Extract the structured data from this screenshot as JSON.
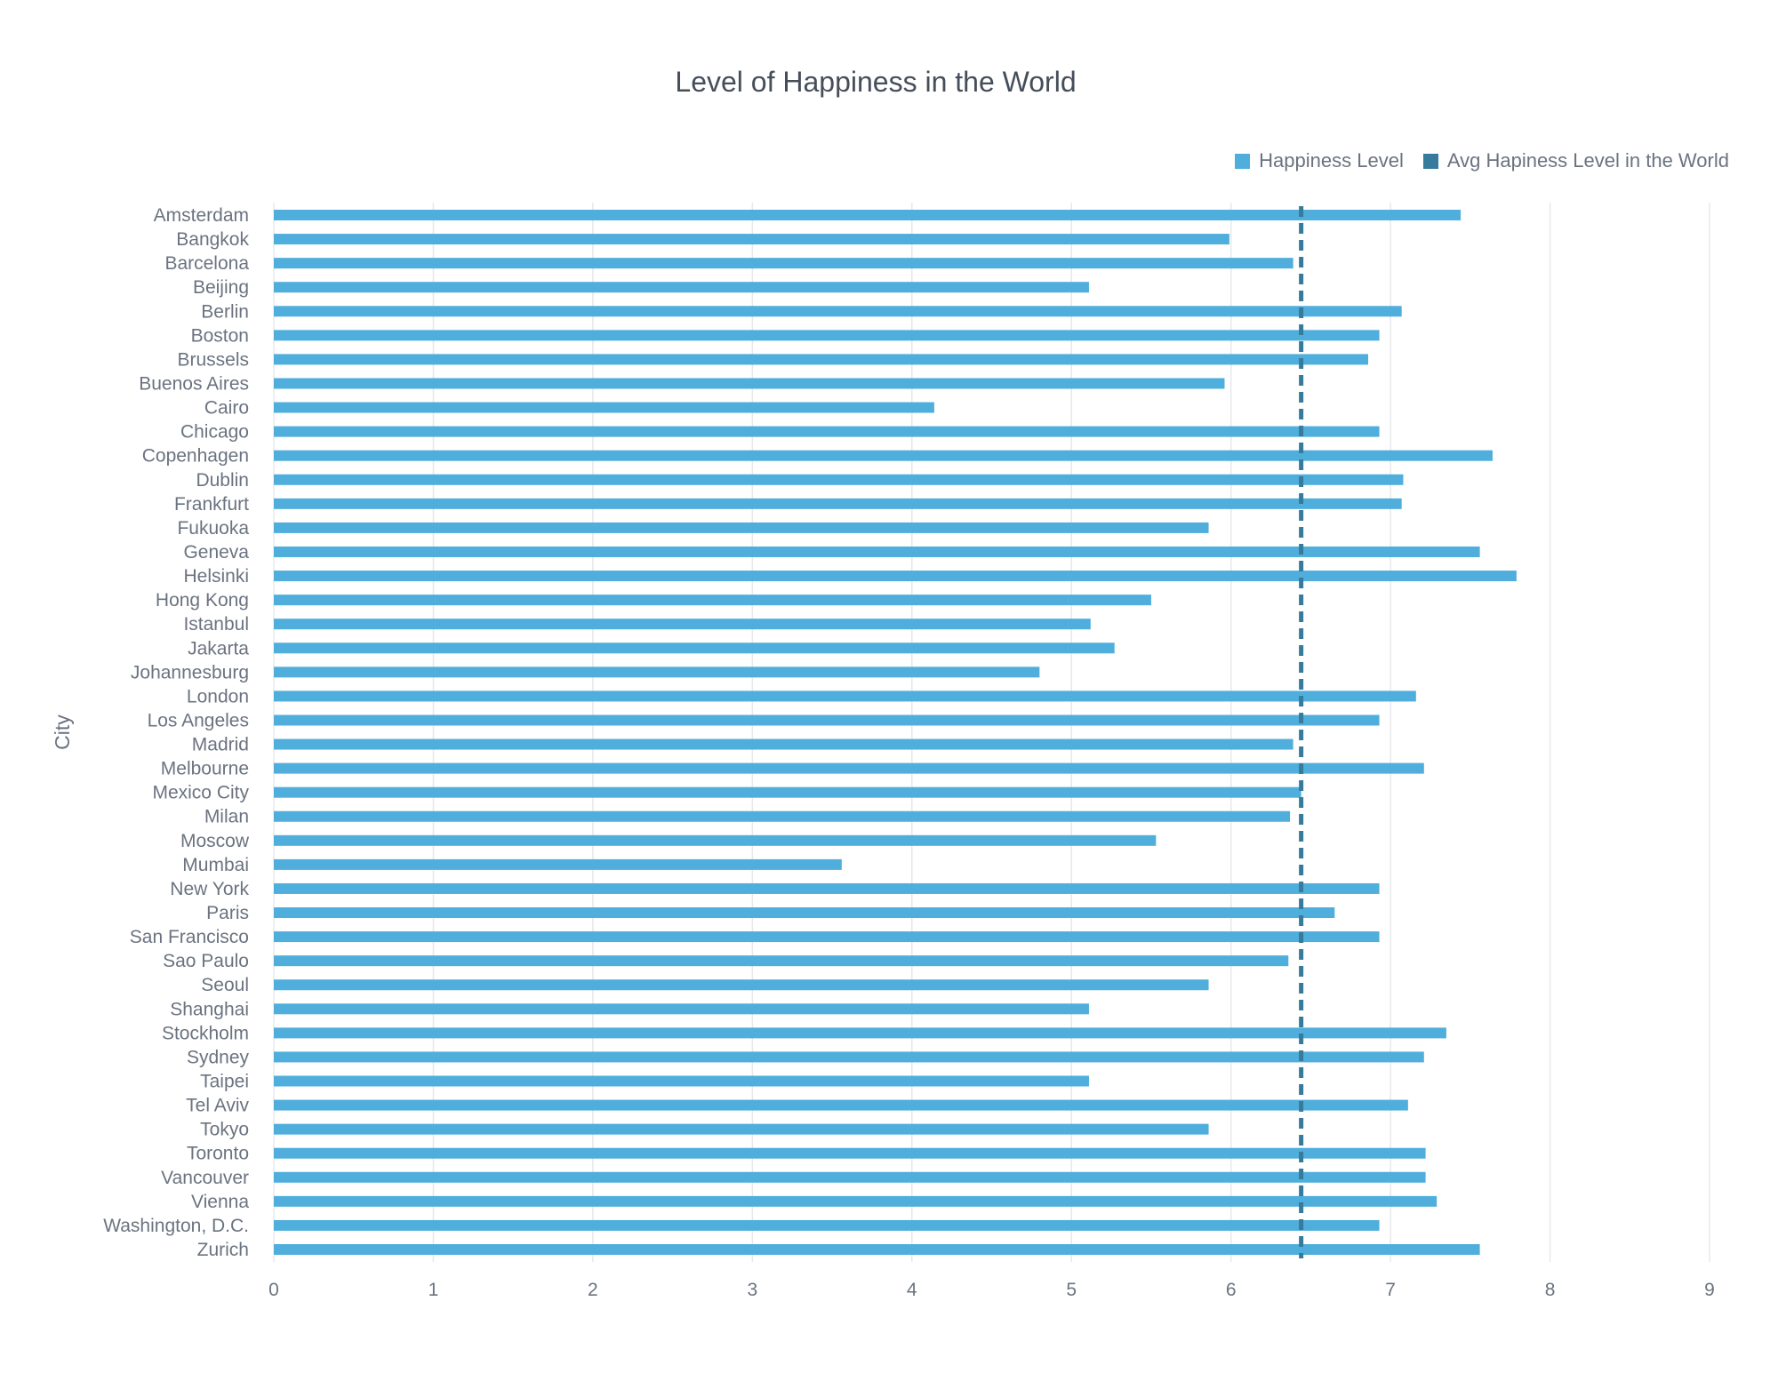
{
  "chart_data": {
    "type": "bar",
    "orientation": "horizontal",
    "title": "Level of Happiness in the World",
    "ylabel": "City",
    "xlabel": "",
    "xlim": [
      0,
      9
    ],
    "xticks": [
      "0",
      "1",
      "2",
      "3",
      "4",
      "5",
      "6",
      "7",
      "8",
      "9"
    ],
    "grid": true,
    "legend_position": "top-right",
    "categories": [
      "Amsterdam",
      "Bangkok",
      "Barcelona",
      "Beijing",
      "Berlin",
      "Boston",
      "Brussels",
      "Buenos Aires",
      "Cairo",
      "Chicago",
      "Copenhagen",
      "Dublin",
      "Frankfurt",
      "Fukuoka",
      "Geneva",
      "Helsinki",
      "Hong Kong",
      "Istanbul",
      "Jakarta",
      "Johannesburg",
      "London",
      "Los Angeles",
      "Madrid",
      "Melbourne",
      "Mexico City",
      "Milan",
      "Moscow",
      "Mumbai",
      "New York",
      "Paris",
      "San Francisco",
      "Sao Paulo",
      "Seoul",
      "Shanghai",
      "Stockholm",
      "Sydney",
      "Taipei",
      "Tel Aviv",
      "Tokyo",
      "Toronto",
      "Vancouver",
      "Vienna",
      "Washington, D.C.",
      "Zurich"
    ],
    "series": [
      {
        "name": "Happiness Level",
        "color": "#4faedc",
        "values": [
          7.44,
          5.99,
          6.39,
          5.11,
          7.07,
          6.93,
          6.86,
          5.96,
          4.14,
          6.93,
          7.64,
          7.08,
          7.07,
          5.86,
          7.56,
          7.79,
          5.5,
          5.12,
          5.27,
          4.8,
          7.16,
          6.93,
          6.39,
          7.21,
          6.44,
          6.37,
          5.53,
          3.56,
          6.93,
          6.65,
          6.93,
          6.36,
          5.86,
          5.11,
          7.35,
          7.21,
          5.11,
          7.11,
          5.86,
          7.22,
          7.22,
          7.29,
          6.93,
          7.56
        ]
      },
      {
        "name": "Avg Hapiness Level in the World",
        "color": "#367a9c",
        "style": "dashed-line",
        "value": 6.44
      }
    ]
  }
}
